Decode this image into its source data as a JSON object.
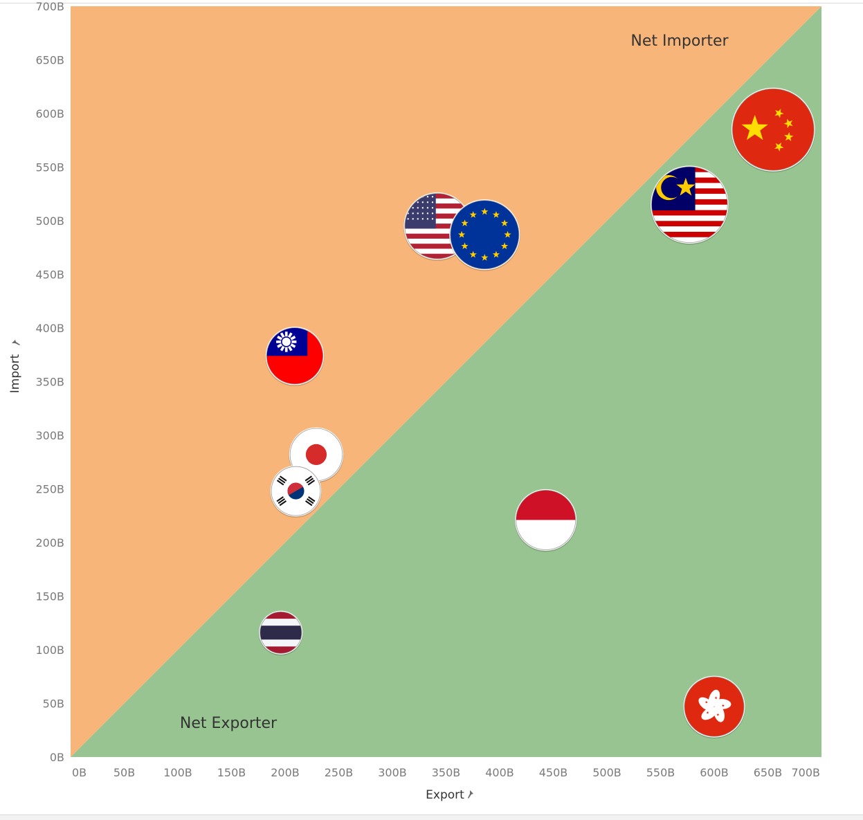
{
  "chart_data": {
    "type": "scatter",
    "title": "",
    "xlabel": "Export",
    "ylabel": "Import",
    "xlim": [
      0,
      700
    ],
    "ylim": [
      0,
      700
    ],
    "unit_suffix": "B",
    "x_ticks": [
      "0B",
      "50B",
      "100B",
      "150B",
      "200B",
      "250B",
      "300B",
      "350B",
      "400B",
      "450B",
      "500B",
      "550B",
      "600B",
      "650B",
      "700B"
    ],
    "y_ticks": [
      "0B",
      "50B",
      "100B",
      "150B",
      "200B",
      "250B",
      "300B",
      "350B",
      "400B",
      "450B",
      "500B",
      "550B",
      "600B",
      "650B",
      "700B"
    ],
    "regions": [
      {
        "label": "Net Importer",
        "color": "#f7b57a"
      },
      {
        "label": "Net Exporter",
        "color": "#98c491"
      }
    ],
    "points": [
      {
        "flag": "china-flag",
        "x": 655,
        "y": 585,
        "size": 1.0
      },
      {
        "flag": "malaysia-flag",
        "x": 577,
        "y": 515,
        "size": 0.93
      },
      {
        "flag": "usa-flag",
        "x": 342,
        "y": 495,
        "size": 0.8
      },
      {
        "flag": "eu-flag",
        "x": 386,
        "y": 487,
        "size": 0.84
      },
      {
        "flag": "taiwan-flag",
        "x": 209,
        "y": 374,
        "size": 0.69
      },
      {
        "flag": "japan-flag",
        "x": 229,
        "y": 282,
        "size": 0.64
      },
      {
        "flag": "south-korea-flag",
        "x": 210,
        "y": 248,
        "size": 0.6
      },
      {
        "flag": "indonesia-flag",
        "x": 443,
        "y": 221,
        "size": 0.73
      },
      {
        "flag": "thailand-flag",
        "x": 196,
        "y": 116,
        "size": 0.51
      },
      {
        "flag": "hong-kong-flag",
        "x": 600,
        "y": 47,
        "size": 0.73
      }
    ]
  },
  "colors": {
    "importer": "#f7b57a",
    "exporter": "#98c491"
  }
}
